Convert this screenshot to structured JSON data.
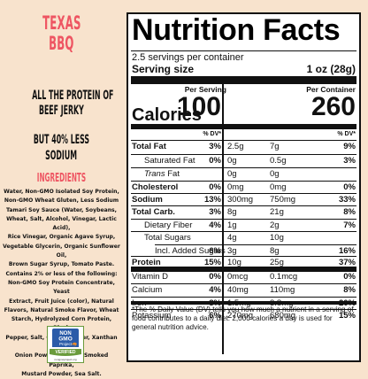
{
  "left": {
    "title_line1": "TEXAS",
    "title_line2": "BBQ",
    "claim1_line1": "ALL THE PROTEIN OF",
    "claim1_line2": "BEEF JERKY",
    "claim2_line1": "BUT 40% LESS",
    "claim2_line2": "SODIUM",
    "ingredients_heading": "INGREDIENTS",
    "ingredients_lines": [
      "Water, Non-GMO Isolated Soy Protein,",
      "Non-GMO Wheat Gluten, Less Sodium",
      "Tamari Soy Sauce (Water, Soybeans,",
      "Wheat, Salt, Alcohol, Vinegar, Lactic Acid),",
      "Rice Vinegar, Organic Agave Syrup,",
      "Vegetable Glycerin, Organic Sunflower Oil,",
      "Brown Sugar Syrup, Tomato Paste.",
      "Contains 2% or less of the following:",
      "Non-GMO Soy Protein Concentrate, Yeast",
      "Extract, Fruit Juice (color), Natural",
      "Flavors, Natural Smoke Flavor, Wheat",
      "Starch, Hydrolyzed Corn Protein, Black",
      "Pepper, Salt, Garlic Powder, Xanthan Gum,",
      "Onion Powder, Spices, Smoked Paprika,",
      "Mustard Powder, Sea Salt."
    ],
    "seal": {
      "line1": "NON",
      "line2": "GMO",
      "line3": "Project",
      "band": "VERIFIED",
      "url": "nongmoproject.org",
      "colors": {
        "green": "#6a9b3c",
        "blue": "#2a5ba8",
        "butterfly": "#e98c2a"
      }
    }
  },
  "label": {
    "title": "Nutrition Facts",
    "servings": "2.5 servings per container",
    "serving_size_label": "Serving size",
    "serving_size_value": "1 oz (28g)",
    "col1_header": "Per Serving",
    "col2_header": "Per Container",
    "calories_label": "Calories",
    "calories_col1": "100",
    "calories_col2": "260",
    "dv_header": "% DV*",
    "rows": [
      {
        "label": "Total Fat",
        "amt1": "2.5g",
        "dv1": "3%",
        "amt2": "7g",
        "dv2": "9%"
      },
      {
        "label": "Saturated Fat",
        "amt1": "0g",
        "dv1": "0%",
        "amt2": "0.5g",
        "dv2": "3%"
      },
      {
        "label_italic": "Trans",
        "label_rest": " Fat",
        "amt1": "0g",
        "dv1": "",
        "amt2": "0g",
        "dv2": ""
      },
      {
        "label": "Cholesterol",
        "amt1": "0mg",
        "dv1": "0%",
        "amt2": "0mg",
        "dv2": "0%"
      },
      {
        "label": "Sodium",
        "amt1": "300mg",
        "dv1": "13%",
        "amt2": "750mg",
        "dv2": "33%"
      },
      {
        "label": "Total Carb.",
        "amt1": "8g",
        "dv1": "3%",
        "amt2": "21g",
        "dv2": "8%"
      },
      {
        "label": "Dietary Fiber",
        "amt1": "1g",
        "dv1": "4%",
        "amt2": "2g",
        "dv2": "7%"
      },
      {
        "label": "Total Sugars",
        "amt1": "4g",
        "dv1": "",
        "amt2": "10g",
        "dv2": ""
      },
      {
        "label": "Incl. Added Sugars",
        "amt1": "3g",
        "dv1": "6%",
        "amt2": "8g",
        "dv2": "16%"
      },
      {
        "label": "Protein",
        "amt1": "10g",
        "dv1": "15%",
        "amt2": "25g",
        "dv2": "37%"
      },
      {
        "label": "Vitamin D",
        "amt1": "0mcg",
        "dv1": "0%",
        "amt2": "0.1mcg",
        "dv2": "0%"
      },
      {
        "label": "Calcium",
        "amt1": "40mg",
        "dv1": "4%",
        "amt2": "110mg",
        "dv2": "8%"
      },
      {
        "label": "Iron",
        "amt1": "1.5mg",
        "dv1": "8%",
        "amt2": "3.8mg",
        "dv2": "20%"
      },
      {
        "label": "Potassium",
        "amt1": "270mg",
        "dv1": "6%",
        "amt2": "680mg",
        "dv2": "15%"
      }
    ],
    "footnote_lines": [
      "*The % Daily Value (DV) tells you how much a nutrient in a serving of",
      "food contributes to a daily diet. 2,000 calories a day is used for",
      "general nutrition advice."
    ]
  },
  "colors": {
    "background": "#f8e3cd",
    "accent": "#ee5562",
    "border": "#6a9b3c"
  }
}
